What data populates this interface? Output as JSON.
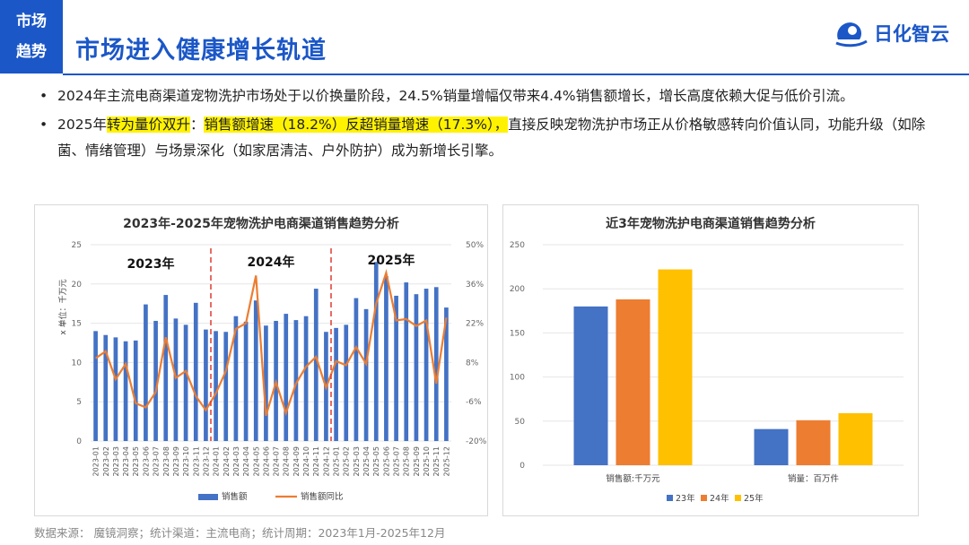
{
  "header": {
    "section_label_1": "市场",
    "section_label_2": "趋势",
    "title": "市场进入健康增长轨道",
    "logo_text": "日化智云"
  },
  "bullets": {
    "b1": "2024年主流电商渠道宠物洗护市场处于以价换量阶段，24.5%销量增幅仅带来4.4%销售额增长，增长高度依赖大促与低价引流。",
    "b2_pre": "2025年",
    "b2_hl1": "转为量价双升",
    "b2_mid": "：",
    "b2_hl2": "销售额增速（18.2%）反超销量增速（17.3%），",
    "b2_post": "直接反映宠物洗护市场正从价格敏感转向价值认同，功能升级（如除菌、情绪管理）与场景深化（如家居清洁、户外防护）成为新增长引擎。"
  },
  "colors": {
    "accent": "#1b57c7",
    "bar_blue": "#4472c4",
    "line_orange": "#ed7d31",
    "bar_gray_yellow": "#ffc000",
    "divider_red": "#e03c31"
  },
  "source_text": "数据来源：   魔镜洞察；统计渠道：主流电商；统计周期：2023年1月-2025年12月",
  "chart_data": [
    {
      "type": "bar",
      "title": "2023年-2025年宠物洗护电商渠道销售趋势分析",
      "ylabel": "x 单位：千万元",
      "ylim": [
        0,
        25
      ],
      "y_ticks": [
        0,
        5,
        10,
        15,
        20,
        25
      ],
      "y2lim": [
        -20,
        50
      ],
      "y2_ticks": [
        "-20%",
        "-6%",
        "8%",
        "22%",
        "36%",
        "50%"
      ],
      "year_labels": [
        "2023年",
        "2024年",
        "2025年"
      ],
      "categories": [
        "2023-01",
        "2023-02",
        "2023-03",
        "2023-04",
        "2023-05",
        "2023-06",
        "2023-07",
        "2023-08",
        "2023-09",
        "2023-10",
        "2023-11",
        "2023-12",
        "2024-01",
        "2024-02",
        "2024-03",
        "2024-04",
        "2024-05",
        "2024-06",
        "2024-07",
        "2024-08",
        "2024-09",
        "2024-10",
        "2024-11",
        "2024-12",
        "2025-01",
        "2025-02",
        "2025-03",
        "2025-04",
        "2025-05",
        "2025-06",
        "2025-07",
        "2025-08",
        "2025-09",
        "2025-10",
        "2025-11",
        "2025-12"
      ],
      "series": [
        {
          "name": "销售额",
          "kind": "bar",
          "values": [
            14.0,
            13.5,
            13.2,
            12.7,
            12.8,
            17.4,
            15.3,
            18.6,
            15.6,
            14.8,
            17.6,
            14.2,
            14.0,
            13.9,
            15.9,
            15.2,
            17.9,
            14.7,
            15.3,
            16.2,
            15.4,
            15.9,
            19.4,
            13.9,
            14.4,
            14.8,
            18.2,
            16.8,
            22.8,
            21.0,
            18.5,
            20.2,
            18.7,
            19.4,
            19.6,
            17.0
          ]
        },
        {
          "name": "销售额同比",
          "kind": "line",
          "values": [
            9.5,
            12.0,
            2.0,
            7.5,
            -6.5,
            -8.0,
            -2.5,
            17.0,
            2.5,
            5.0,
            -4.0,
            -9.0,
            -3.0,
            5.0,
            20.0,
            22.0,
            39.0,
            -11.0,
            1.0,
            -10.0,
            0.5,
            6.5,
            10.0,
            -1.0,
            8.5,
            7.0,
            13.5,
            7.5,
            29.0,
            40.0,
            23.0,
            23.5,
            21.0,
            23.0,
            0.5,
            24.0
          ]
        }
      ]
    },
    {
      "type": "bar",
      "title": "近3年宠物洗护电商渠道销售趋势分析",
      "ylim": [
        0,
        250
      ],
      "y_ticks": [
        0,
        50,
        100,
        150,
        200,
        250
      ],
      "categories": [
        "销售额:千万元",
        "销量：百万件"
      ],
      "series": [
        {
          "name": "23年",
          "values": [
            180,
            41
          ]
        },
        {
          "name": "24年",
          "values": [
            188,
            51
          ]
        },
        {
          "name": "25年",
          "values": [
            222,
            59
          ]
        }
      ]
    }
  ]
}
